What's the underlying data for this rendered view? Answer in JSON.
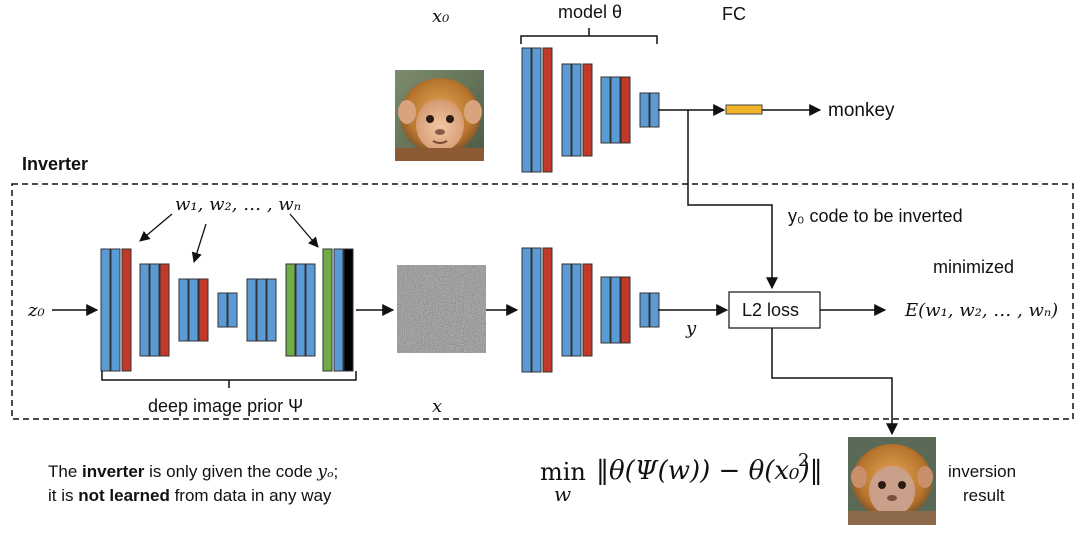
{
  "labels": {
    "x0": "x₀",
    "model": "model θ",
    "fc": "FC",
    "monkey": "monkey",
    "inverter_title": "Inverter",
    "weights": "w₁, w₂, … , wₙ",
    "y0_code": "y₀ code to be inverted",
    "minimized": "minimized",
    "z0": "z₀",
    "l2_loss": "L2 loss",
    "energy": "E(w₁, w₂, … , wₙ)",
    "y": "y",
    "deep_image_prior": "deep image prior Ψ",
    "x": "x",
    "inversion_line1": "inversion",
    "inversion_line2": "result"
  },
  "caption": {
    "line1_pre": "The ",
    "line1_bold": "inverter",
    "line1_mid": " is only given the code ",
    "line1_code": "yₒ",
    "line1_end": ";",
    "line2_pre": "it is ",
    "line2_bold": "not learned",
    "line2_end": " from data in any way"
  },
  "formula": {
    "min": "min",
    "var": "w",
    "body": "‖θ(Ψ(w)) − θ(x₀)‖",
    "power": "2"
  },
  "colors": {
    "blue": "#5b9bd5",
    "red": "#c0392b",
    "green": "#70ad47",
    "black": "#000000",
    "fc_orange": "#f0b429",
    "monkey_fur": "#c98a3e"
  },
  "icons": {
    "input_image": "monkey-photo",
    "noise_image": "noise-image",
    "result_image": "monkey-inversion-photo"
  }
}
